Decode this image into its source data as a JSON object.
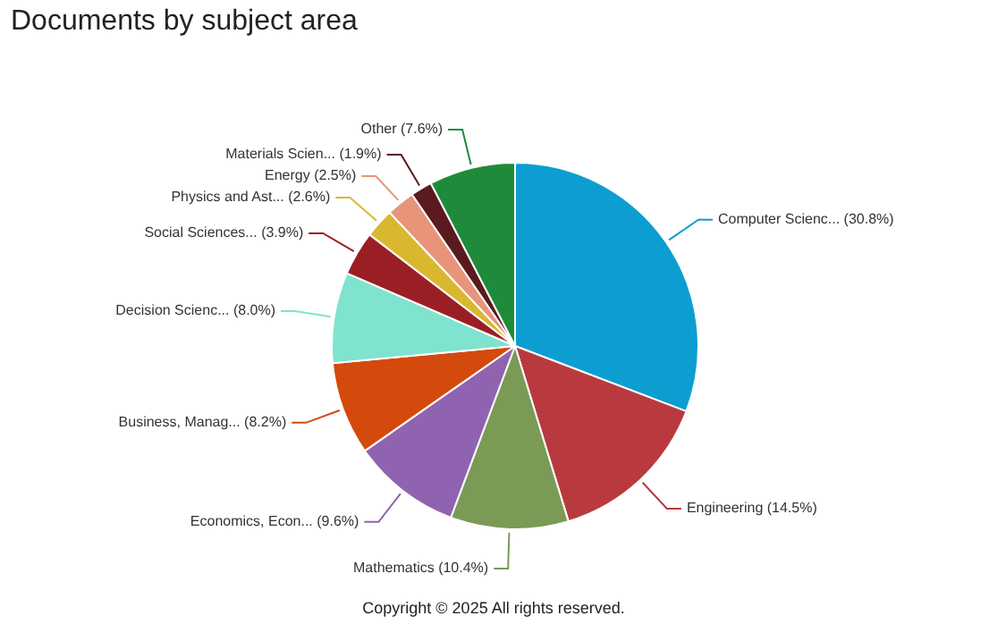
{
  "chart_data": {
    "type": "pie",
    "title": "Documents by subject area",
    "categories": [
      "Computer Scienc... (30.8%)",
      "Engineering (14.5%)",
      "Mathematics (10.4%)",
      "Economics, Econ... (9.6%)",
      "Business, Manag... (8.2%)",
      "Decision Scienc... (8.0%)",
      "Social Sciences... (3.9%)",
      "Physics and Ast... (2.6%)",
      "Energy (2.5%)",
      "Materials Scien... (1.9%)",
      "Other (7.6%)"
    ],
    "values": [
      30.8,
      14.5,
      10.4,
      9.6,
      8.2,
      8.0,
      3.9,
      2.6,
      2.5,
      1.9,
      7.6
    ],
    "colors": [
      "#0d9ed1",
      "#b83a3f",
      "#7a9a56",
      "#9063b0",
      "#d34a0c",
      "#7fe3cf",
      "#9a1f25",
      "#d9b830",
      "#e8947a",
      "#5a1a1e",
      "#1f8a3a"
    ],
    "legend": false,
    "annotations": [
      "Copyright © 2025 All rights reserved."
    ]
  }
}
